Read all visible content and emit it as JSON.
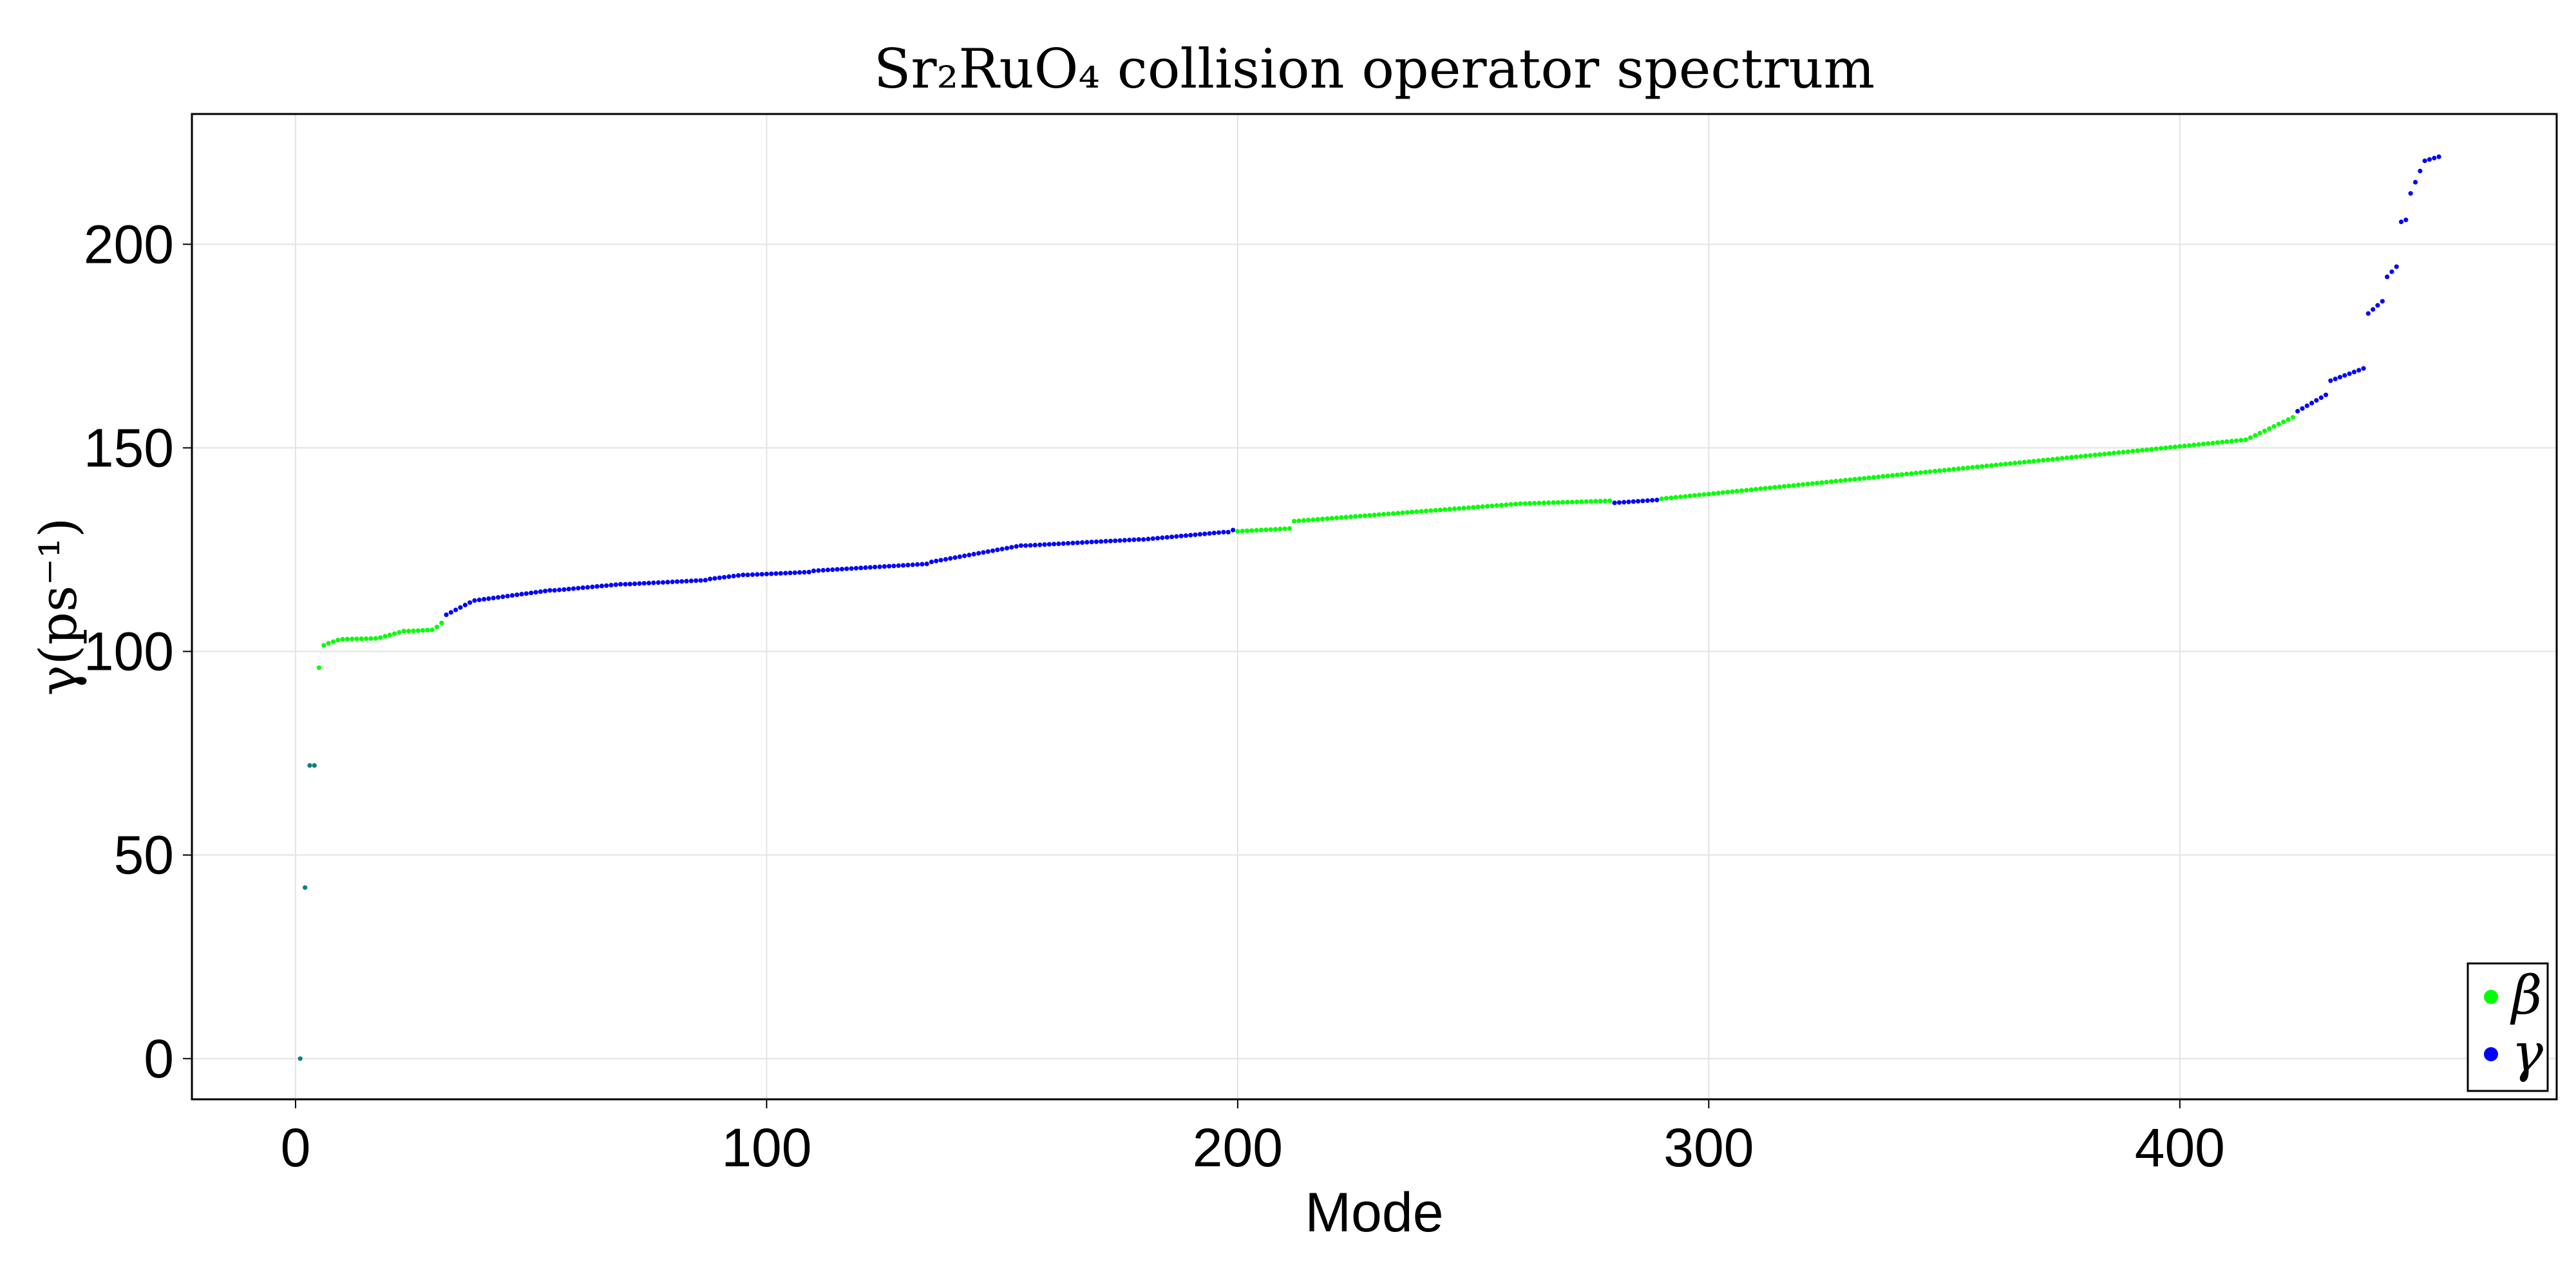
{
  "chart_data": {
    "type": "scatter",
    "title": "Sr₂RuO₄ collision operator spectrum",
    "xlabel": "Mode",
    "ylabel": "γ(ps⁻¹)",
    "xlim": [
      -22,
      480
    ],
    "ylim": [
      -10,
      232
    ],
    "xticks": [
      0,
      100,
      200,
      300,
      400
    ],
    "yticks": [
      0,
      50,
      100,
      150,
      200
    ],
    "grid": true,
    "legend_position": "bottom-right",
    "colors": {
      "beta": "#00ff00",
      "gamma": "#0000ff",
      "mixed": "#008080"
    },
    "legend": [
      {
        "label": "β",
        "color": "#00ff00"
      },
      {
        "label": "γ",
        "color": "#0000ff"
      }
    ],
    "series": [
      {
        "name": "mixed",
        "color": "#008080",
        "points": [
          [
            1,
            0
          ],
          [
            2,
            42
          ],
          [
            3,
            72
          ],
          [
            4,
            72
          ]
        ]
      },
      {
        "name": "β",
        "color": "#00ff00",
        "segments": [
          [
            5,
            96,
            96
          ],
          [
            6,
            101.5,
            101.5
          ],
          [
            7,
            102,
            102.8
          ],
          [
            10,
            103,
            103.2
          ],
          [
            18,
            103.4,
            105
          ],
          [
            24,
            105,
            105.3
          ],
          [
            30,
            106,
            107
          ],
          [
            200,
            129.5,
            130.2
          ],
          [
            212,
            132,
            136.2
          ],
          [
            260,
            136.3,
            137
          ],
          [
            290,
            137.5,
            152
          ],
          [
            415,
            152.5,
            157.5
          ]
        ]
      },
      {
        "name": "γ",
        "color": "#0000ff",
        "segments": [
          [
            32,
            109,
            112
          ],
          [
            38,
            112.5,
            115
          ],
          [
            55,
            115,
            116.5
          ],
          [
            70,
            116.5,
            117.5
          ],
          [
            88,
            117.8,
            118.8
          ],
          [
            96,
            118.8,
            119.5
          ],
          [
            110,
            119.8,
            121.5
          ],
          [
            135,
            122,
            126
          ],
          [
            155,
            126,
            127.5
          ],
          [
            180,
            127.5,
            129.3
          ],
          [
            198,
            129.3,
            129.8
          ],
          [
            280,
            136.5,
            137.2
          ],
          [
            425,
            159,
            163
          ],
          [
            432,
            166.5,
            169.5
          ],
          [
            440,
            183,
            186
          ],
          [
            444,
            192,
            194.5
          ],
          [
            447,
            205.5,
            206
          ],
          [
            449,
            212.5,
            218
          ],
          [
            452,
            220.5,
            221.5
          ]
        ]
      }
    ]
  }
}
